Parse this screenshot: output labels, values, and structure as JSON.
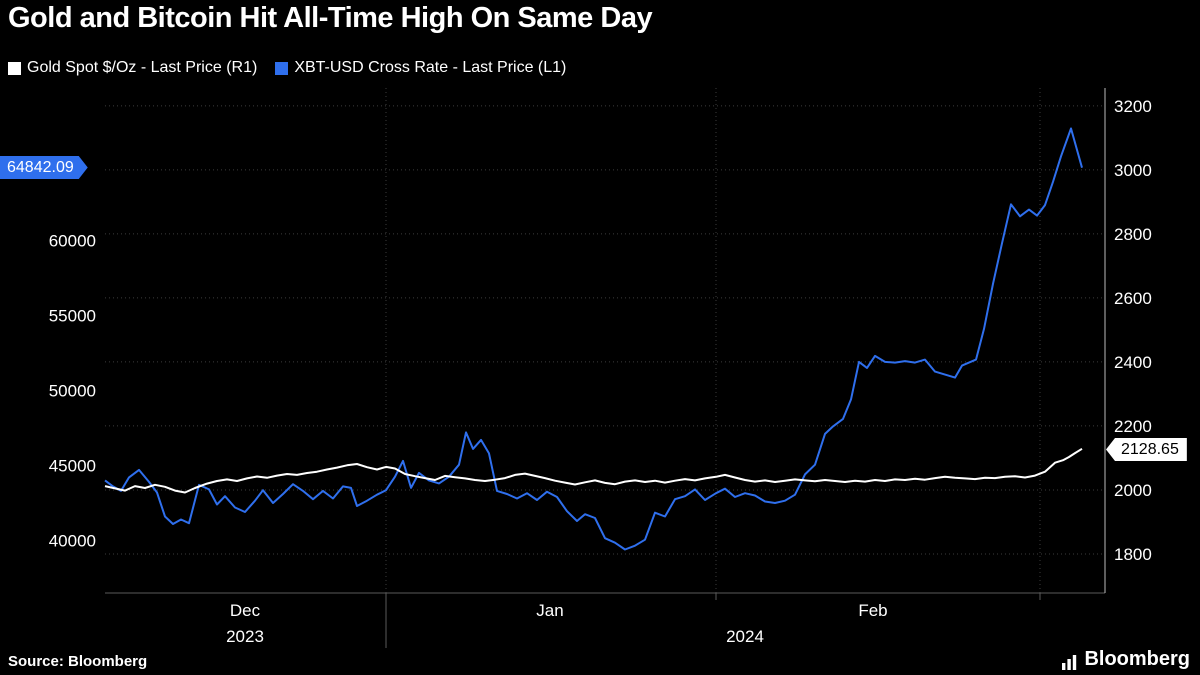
{
  "title": "Gold and Bitcoin Hit All-Time High On Same Day",
  "legend": {
    "gold": {
      "label": "Gold Spot $/Oz - Last Price (R1)",
      "color": "#ffffff"
    },
    "btc": {
      "label": "XBT-USD Cross Rate - Last Price (L1)",
      "color": "#2f6fed"
    }
  },
  "footer": {
    "source": "Source: Bloomberg",
    "brand": "Bloomberg"
  },
  "chart_data": {
    "type": "line",
    "title": "Gold and Bitcoin Hit All-Time High On Same Day",
    "background": "#000000",
    "grid": "dotted",
    "legend_position": "top-left",
    "last_price": {
      "bitcoin": "64842.09",
      "gold": "2128.65"
    },
    "left_axis": {
      "min": 36500,
      "max": 70150,
      "ticks": [
        40000,
        45000,
        50000,
        55000,
        60000
      ]
    },
    "right_axis": {
      "min": 1678,
      "max": 3256,
      "ticks": [
        1800,
        2000,
        2200,
        2400,
        2600,
        2800,
        3000,
        3200
      ]
    },
    "x_axis": {
      "months": [
        {
          "label": "Dec",
          "center": 0.14
        },
        {
          "label": "Jan",
          "center": 0.445
        },
        {
          "label": "Feb",
          "center": 0.768
        }
      ],
      "years": [
        {
          "label": "2023",
          "center": 0.14
        },
        {
          "label": "2024",
          "center": 0.64
        }
      ],
      "gridlines": [
        0.281,
        0.611,
        0.935
      ],
      "year_separator": 0.281
    },
    "series": [
      {
        "name": "XBT-USD Cross Rate - Last Price (L1)",
        "axis": "left",
        "color": "#2f6fed",
        "points": [
          [
            0.0,
            44000
          ],
          [
            0.008,
            43600
          ],
          [
            0.016,
            43300
          ],
          [
            0.024,
            44200
          ],
          [
            0.034,
            44700
          ],
          [
            0.044,
            43900
          ],
          [
            0.052,
            43200
          ],
          [
            0.06,
            41600
          ],
          [
            0.068,
            41100
          ],
          [
            0.076,
            41400
          ],
          [
            0.084,
            41150
          ],
          [
            0.094,
            43700
          ],
          [
            0.104,
            43400
          ],
          [
            0.112,
            42400
          ],
          [
            0.12,
            42950
          ],
          [
            0.13,
            42200
          ],
          [
            0.14,
            41900
          ],
          [
            0.15,
            42650
          ],
          [
            0.158,
            43350
          ],
          [
            0.168,
            42500
          ],
          [
            0.178,
            43100
          ],
          [
            0.188,
            43750
          ],
          [
            0.198,
            43300
          ],
          [
            0.208,
            42750
          ],
          [
            0.218,
            43300
          ],
          [
            0.228,
            42800
          ],
          [
            0.238,
            43600
          ],
          [
            0.246,
            43500
          ],
          [
            0.252,
            42300
          ],
          [
            0.262,
            42650
          ],
          [
            0.272,
            43050
          ],
          [
            0.281,
            43350
          ],
          [
            0.29,
            44250
          ],
          [
            0.298,
            45300
          ],
          [
            0.306,
            43500
          ],
          [
            0.314,
            44500
          ],
          [
            0.324,
            44000
          ],
          [
            0.334,
            43800
          ],
          [
            0.344,
            44250
          ],
          [
            0.354,
            45050
          ],
          [
            0.361,
            47200
          ],
          [
            0.368,
            46100
          ],
          [
            0.376,
            46700
          ],
          [
            0.384,
            45800
          ],
          [
            0.392,
            43300
          ],
          [
            0.402,
            43100
          ],
          [
            0.412,
            42800
          ],
          [
            0.422,
            43150
          ],
          [
            0.432,
            42700
          ],
          [
            0.442,
            43250
          ],
          [
            0.452,
            42900
          ],
          [
            0.462,
            41950
          ],
          [
            0.472,
            41300
          ],
          [
            0.48,
            41750
          ],
          [
            0.49,
            41500
          ],
          [
            0.5,
            40150
          ],
          [
            0.51,
            39850
          ],
          [
            0.52,
            39400
          ],
          [
            0.53,
            39650
          ],
          [
            0.54,
            40050
          ],
          [
            0.55,
            41850
          ],
          [
            0.56,
            41600
          ],
          [
            0.57,
            42750
          ],
          [
            0.58,
            42950
          ],
          [
            0.59,
            43400
          ],
          [
            0.6,
            42700
          ],
          [
            0.611,
            43150
          ],
          [
            0.62,
            43450
          ],
          [
            0.63,
            42900
          ],
          [
            0.64,
            43150
          ],
          [
            0.65,
            43000
          ],
          [
            0.66,
            42600
          ],
          [
            0.67,
            42500
          ],
          [
            0.68,
            42650
          ],
          [
            0.69,
            43050
          ],
          [
            0.7,
            44400
          ],
          [
            0.71,
            45050
          ],
          [
            0.72,
            47100
          ],
          [
            0.728,
            47600
          ],
          [
            0.738,
            48100
          ],
          [
            0.746,
            49400
          ],
          [
            0.754,
            51900
          ],
          [
            0.762,
            51500
          ],
          [
            0.77,
            52300
          ],
          [
            0.78,
            51900
          ],
          [
            0.79,
            51850
          ],
          [
            0.8,
            51950
          ],
          [
            0.81,
            51850
          ],
          [
            0.82,
            52050
          ],
          [
            0.83,
            51250
          ],
          [
            0.84,
            51050
          ],
          [
            0.85,
            50850
          ],
          [
            0.857,
            51650
          ],
          [
            0.864,
            51850
          ],
          [
            0.871,
            52050
          ],
          [
            0.879,
            54100
          ],
          [
            0.888,
            57100
          ],
          [
            0.897,
            59800
          ],
          [
            0.906,
            62400
          ],
          [
            0.915,
            61600
          ],
          [
            0.924,
            62050
          ],
          [
            0.932,
            61650
          ],
          [
            0.94,
            62350
          ],
          [
            0.948,
            63900
          ],
          [
            0.956,
            65600
          ],
          [
            0.966,
            67450
          ],
          [
            0.977,
            64842.09
          ]
        ]
      },
      {
        "name": "Gold Spot $/Oz - Last Price (R1)",
        "axis": "right",
        "color": "#ffffff",
        "points": [
          [
            0.0,
            2012
          ],
          [
            0.01,
            2005
          ],
          [
            0.02,
            1998
          ],
          [
            0.03,
            2012
          ],
          [
            0.04,
            2006
          ],
          [
            0.05,
            2016
          ],
          [
            0.06,
            2010
          ],
          [
            0.07,
            1998
          ],
          [
            0.08,
            1992
          ],
          [
            0.09,
            2006
          ],
          [
            0.102,
            2020
          ],
          [
            0.112,
            2028
          ],
          [
            0.122,
            2033
          ],
          [
            0.132,
            2028
          ],
          [
            0.142,
            2036
          ],
          [
            0.152,
            2042
          ],
          [
            0.162,
            2038
          ],
          [
            0.172,
            2045
          ],
          [
            0.182,
            2050
          ],
          [
            0.192,
            2047
          ],
          [
            0.202,
            2053
          ],
          [
            0.212,
            2057
          ],
          [
            0.222,
            2064
          ],
          [
            0.232,
            2070
          ],
          [
            0.242,
            2077
          ],
          [
            0.252,
            2081
          ],
          [
            0.262,
            2071
          ],
          [
            0.272,
            2064
          ],
          [
            0.281,
            2072
          ],
          [
            0.29,
            2067
          ],
          [
            0.3,
            2050
          ],
          [
            0.31,
            2043
          ],
          [
            0.32,
            2037
          ],
          [
            0.33,
            2031
          ],
          [
            0.34,
            2044
          ],
          [
            0.35,
            2040
          ],
          [
            0.36,
            2036
          ],
          [
            0.37,
            2031
          ],
          [
            0.38,
            2028
          ],
          [
            0.39,
            2032
          ],
          [
            0.4,
            2037
          ],
          [
            0.41,
            2047
          ],
          [
            0.42,
            2051
          ],
          [
            0.43,
            2044
          ],
          [
            0.44,
            2037
          ],
          [
            0.45,
            2029
          ],
          [
            0.46,
            2023
          ],
          [
            0.47,
            2017
          ],
          [
            0.48,
            2024
          ],
          [
            0.49,
            2030
          ],
          [
            0.5,
            2022
          ],
          [
            0.51,
            2018
          ],
          [
            0.52,
            2026
          ],
          [
            0.53,
            2030
          ],
          [
            0.54,
            2025
          ],
          [
            0.55,
            2029
          ],
          [
            0.56,
            2023
          ],
          [
            0.57,
            2029
          ],
          [
            0.58,
            2034
          ],
          [
            0.59,
            2030
          ],
          [
            0.6,
            2036
          ],
          [
            0.611,
            2041
          ],
          [
            0.62,
            2047
          ],
          [
            0.63,
            2039
          ],
          [
            0.64,
            2031
          ],
          [
            0.65,
            2026
          ],
          [
            0.66,
            2030
          ],
          [
            0.67,
            2025
          ],
          [
            0.68,
            2029
          ],
          [
            0.69,
            2033
          ],
          [
            0.7,
            2030
          ],
          [
            0.71,
            2027
          ],
          [
            0.72,
            2031
          ],
          [
            0.73,
            2028
          ],
          [
            0.74,
            2025
          ],
          [
            0.75,
            2029
          ],
          [
            0.76,
            2026
          ],
          [
            0.77,
            2031
          ],
          [
            0.78,
            2028
          ],
          [
            0.79,
            2033
          ],
          [
            0.8,
            2031
          ],
          [
            0.81,
            2035
          ],
          [
            0.82,
            2032
          ],
          [
            0.83,
            2037
          ],
          [
            0.84,
            2041
          ],
          [
            0.85,
            2038
          ],
          [
            0.86,
            2036
          ],
          [
            0.87,
            2034
          ],
          [
            0.88,
            2038
          ],
          [
            0.89,
            2037
          ],
          [
            0.9,
            2041
          ],
          [
            0.91,
            2043
          ],
          [
            0.92,
            2039
          ],
          [
            0.93,
            2045
          ],
          [
            0.94,
            2057
          ],
          [
            0.95,
            2085
          ],
          [
            0.958,
            2093
          ],
          [
            0.964,
            2103
          ],
          [
            0.97,
            2115
          ],
          [
            0.977,
            2128.65
          ]
        ]
      }
    ]
  }
}
